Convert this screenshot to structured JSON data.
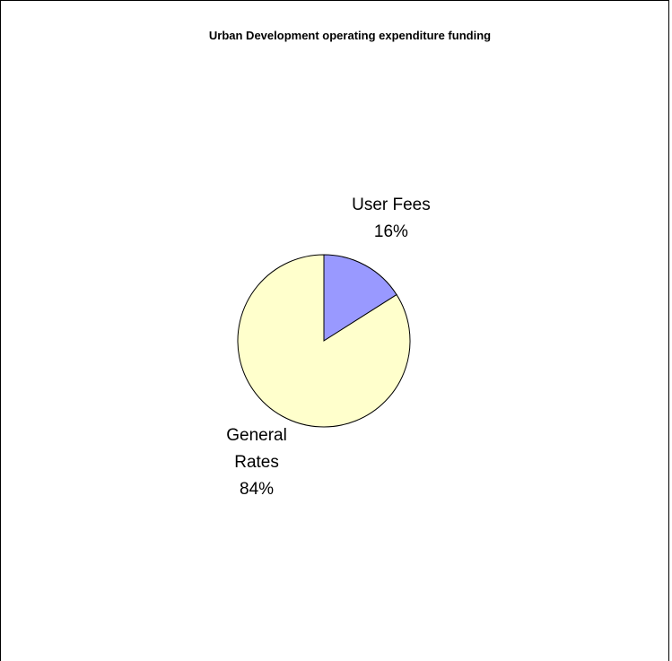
{
  "chart_data": {
    "type": "pie",
    "title": "Urban Development operating expenditure funding",
    "categories": [
      "User Fees",
      "General Rates"
    ],
    "values": [
      16,
      84
    ],
    "value_labels": [
      "16%",
      "84%"
    ],
    "colors": [
      "#9999ff",
      "#ffffcc"
    ]
  }
}
